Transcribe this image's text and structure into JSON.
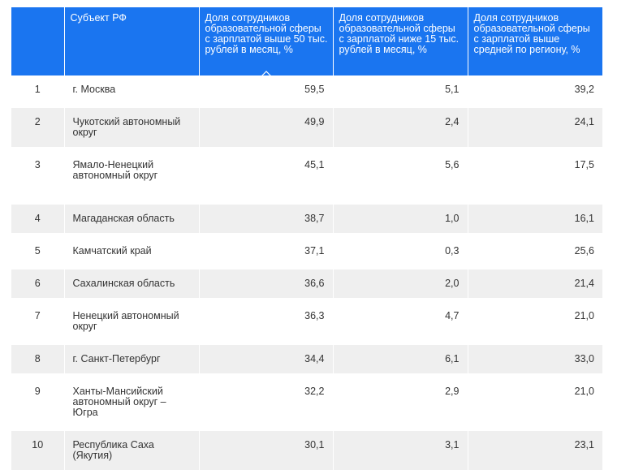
{
  "table": {
    "headers": {
      "num": "",
      "region": "Субъект РФ",
      "col1": "Доля сотрудников образовательной сферы с зарплатой выше 50 тыс. рублей в месяц, %",
      "col2": "Доля сотрудников образовательной сферы с зарплатой ниже 15 тыс. рублей в месяц, %",
      "col3": "Доля сотрудников образовательной сферы с зарплатой выше средней по региону, %"
    },
    "sort_icon": "chevron-up-icon",
    "rows": [
      {
        "n": "1",
        "region": "г. Москва",
        "v1": "59,5",
        "v2": "5,1",
        "v3": "39,2"
      },
      {
        "n": "2",
        "region": "Чукотский автономный округ",
        "v1": "49,9",
        "v2": "2,4",
        "v3": "24,1"
      },
      {
        "n": "3",
        "region": "Ямало-Ненецкий автономный округ",
        "v1": "45,1",
        "v2": "5,6",
        "v3": "17,5"
      },
      {
        "n": "4",
        "region": "Магаданская область",
        "v1": "38,7",
        "v2": "1,0",
        "v3": "16,1"
      },
      {
        "n": "5",
        "region": "Камчатский край",
        "v1": "37,1",
        "v2": "0,3",
        "v3": "25,6"
      },
      {
        "n": "6",
        "region": "Сахалинская область",
        "v1": "36,6",
        "v2": "2,0",
        "v3": "21,4"
      },
      {
        "n": "7",
        "region": "Ненецкий автономный округ",
        "v1": "36,3",
        "v2": "4,7",
        "v3": "21,0"
      },
      {
        "n": "8",
        "region": "г. Санкт-Петербург",
        "v1": "34,4",
        "v2": "6,1",
        "v3": "33,0"
      },
      {
        "n": "9",
        "region": "Ханты-Мансийский автономный округ – Югра",
        "v1": "32,2",
        "v2": "2,9",
        "v3": "21,0"
      },
      {
        "n": "10",
        "region": "Республика Саха (Якутия)",
        "v1": "30,1",
        "v2": "3,1",
        "v3": "23,1"
      }
    ]
  },
  "colors": {
    "header_bg": "#1a75f0",
    "header_text": "#ffffff",
    "row_alt_bg": "#efefef"
  }
}
